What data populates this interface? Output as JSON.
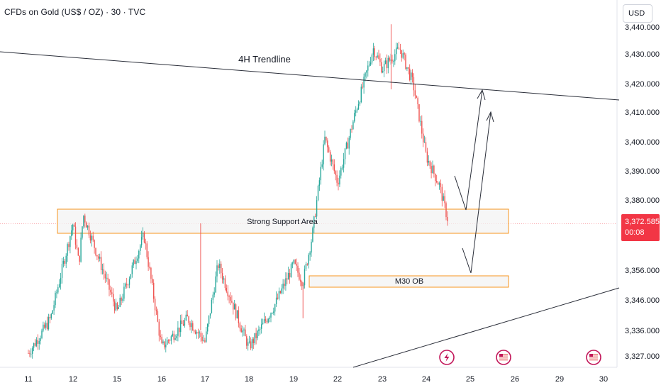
{
  "header": {
    "symbol_title": "CFDs on Gold (US$ / OZ) · 30 · TVC",
    "currency_button": "USD"
  },
  "price_axis": {
    "current_price": "3,372.585",
    "countdown": "00:08"
  },
  "annotations": {
    "trendline_label": "4H Trendline",
    "support_label": "Strong Support Area",
    "ob_label": "M30 OB"
  },
  "colors": {
    "up_candle": "#26a69a",
    "down_candle": "#ef5350",
    "zone_border": "#f7941d",
    "zone_fill": "#f2f2f2",
    "badge": "#f23645",
    "event_icon": "#c2185b"
  },
  "chart_data": {
    "type": "candlestick",
    "title": "CFDs on Gold (US$ / OZ) · 30 · TVC",
    "x_ticks": [
      "11",
      "12",
      "15",
      "16",
      "17",
      "18",
      "19",
      "22",
      "23",
      "24",
      "25",
      "26",
      "29",
      "30"
    ],
    "y_ticks": [
      3327.0,
      3336.0,
      3346.0,
      3356.0,
      3380.0,
      3390.0,
      3400.0,
      3410.0,
      3420.0,
      3430.0,
      3440.0
    ],
    "y_tick_labels": [
      "3,327.000",
      "3,336.000",
      "3,346.000",
      "3,356.000",
      "3,380.000",
      "3,390.000",
      "3,400.000",
      "3,410.000",
      "3,420.000",
      "3,430.000",
      "3,440.000"
    ],
    "ylim": [
      3323.0,
      3443.0
    ],
    "current_price": 3372.585,
    "price_path_anchors": [
      {
        "x": "11",
        "y": 3328
      },
      {
        "x": "11.5",
        "y": 3340
      },
      {
        "x": "12",
        "y": 3372
      },
      {
        "x": "12.4",
        "y": 3358
      },
      {
        "x": "12.7",
        "y": 3375
      },
      {
        "x": "15",
        "y": 3342
      },
      {
        "x": "15.6",
        "y": 3368
      },
      {
        "x": "16",
        "y": 3330
      },
      {
        "x": "16.6",
        "y": 3340
      },
      {
        "x": "17",
        "y": 3332
      },
      {
        "x": "17.3",
        "y": 3358
      },
      {
        "x": "18",
        "y": 3330
      },
      {
        "x": "18.6",
        "y": 3345
      },
      {
        "x": "19",
        "y": 3358
      },
      {
        "x": "19.3",
        "y": 3352
      },
      {
        "x": "19.6",
        "y": 3368
      },
      {
        "x": "20",
        "y": 3401
      },
      {
        "x": "22",
        "y": 3386
      },
      {
        "x": "22.4",
        "y": 3410
      },
      {
        "x": "22.8",
        "y": 3432
      },
      {
        "x": "23",
        "y": 3425
      },
      {
        "x": "23.4",
        "y": 3432
      },
      {
        "x": "23.7",
        "y": 3420
      },
      {
        "x": "24",
        "y": 3395
      },
      {
        "x": "24.3",
        "y": 3385
      },
      {
        "x": "24.5",
        "y": 3372.6
      }
    ],
    "drawings": {
      "trendline_4h": {
        "label": "4H Trendline",
        "from": {
          "x": "11",
          "y": 3432
        },
        "to": {
          "x": "30",
          "y": 3414
        }
      },
      "support_area": {
        "label": "Strong Support Area",
        "y_low": 3370,
        "y_high": 3377
      },
      "m30_ob": {
        "label": "M30 OB",
        "y_low": 3352,
        "y_high": 3356
      },
      "lower_trendline": {
        "from": {
          "x": "22",
          "y": 3327
        },
        "to": {
          "x": "30",
          "y": 3350
        }
      },
      "projection_1": {
        "points": [
          {
            "x": "24.7",
            "y": 3391
          },
          {
            "x": "25",
            "y": 3376
          },
          {
            "x": "25.2",
            "y": 3419
          }
        ]
      },
      "projection_2": {
        "points": [
          {
            "x": "24.8",
            "y": 3366
          },
          {
            "x": "25",
            "y": 3355
          },
          {
            "x": "25.4",
            "y": 3411
          }
        ]
      }
    },
    "event_markers": [
      "lightning-event-icon",
      "us-flag-event-icon",
      "us-flag-event-icon"
    ]
  }
}
